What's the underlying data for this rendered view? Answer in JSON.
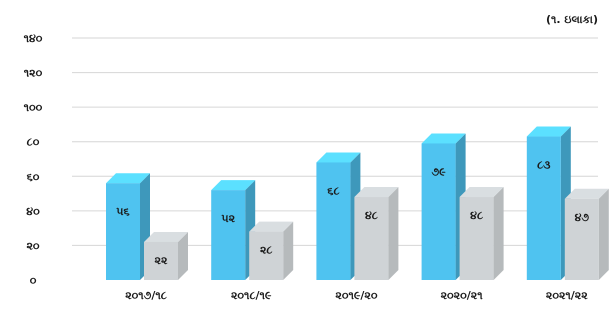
{
  "chart_data": {
    "type": "bar",
    "unit_label": "(૧. ઇલાકા)",
    "categories": [
      "૨૦૧૭/૧૮",
      "૨૦૧૮/૧૯",
      "૨૦૧૯/૨૦",
      "૨૦૨૦/૨૧",
      "૨૦૨૧/૨૨"
    ],
    "series": [
      {
        "values": [
          56,
          52,
          68,
          79,
          83
        ],
        "value_labels": [
          "૫૬",
          "૫૨",
          "૬૮",
          "૭૯",
          "૮૩"
        ],
        "color": "#4fc3f0"
      },
      {
        "values": [
          22,
          28,
          48,
          48,
          47
        ],
        "value_labels": [
          "૨૨",
          "૨૮",
          "૪૮",
          "૪૮",
          "૪૭"
        ],
        "color": "#cfd3d6"
      }
    ],
    "yticks": [
      0,
      20,
      40,
      60,
      80,
      100,
      120,
      140
    ],
    "ytick_labels": [
      "૦",
      "૨૦",
      "૪૦",
      "૬૦",
      "૮૦",
      "૧૦૦",
      "૧૨૦",
      "૧૪૦"
    ],
    "ylim": [
      0,
      140
    ],
    "grid": true
  }
}
